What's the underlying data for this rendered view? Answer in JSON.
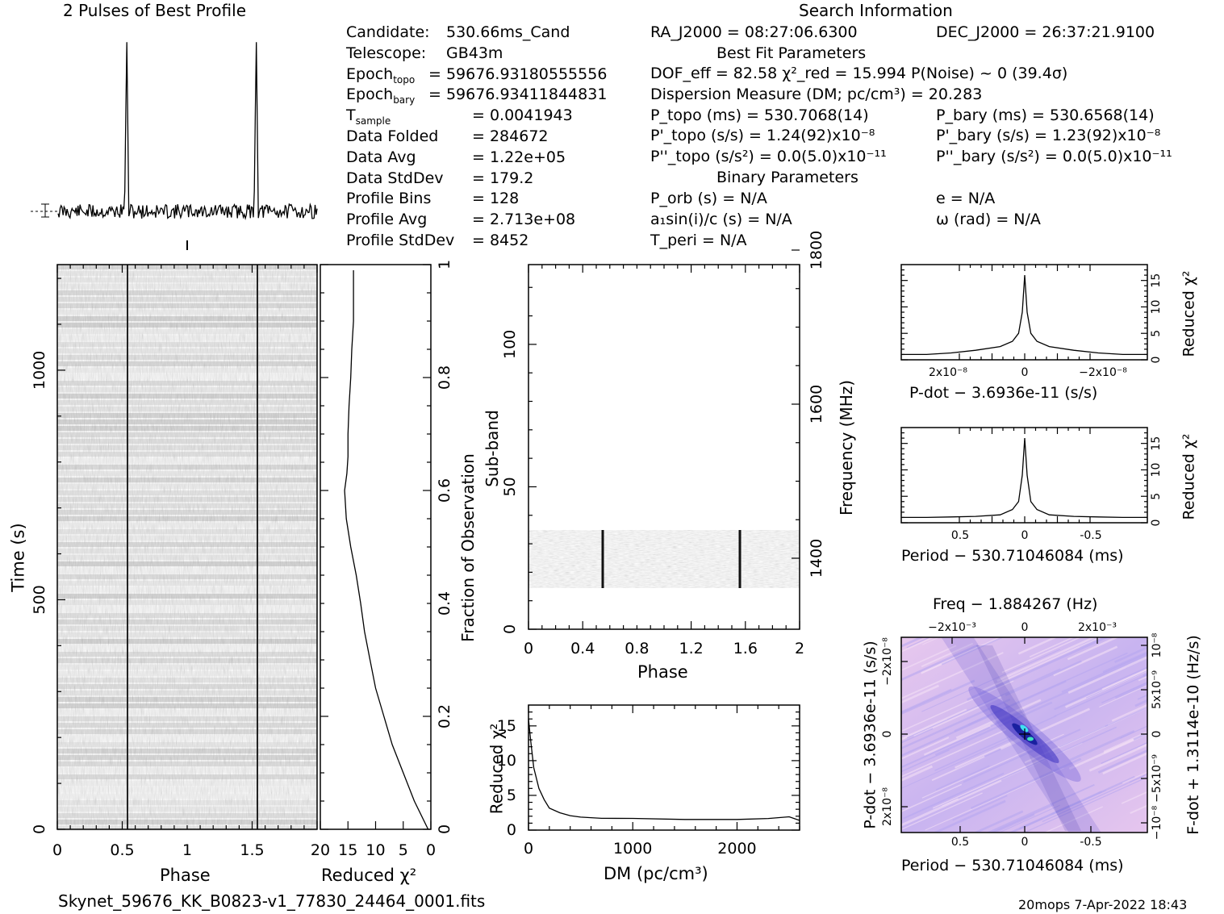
{
  "header": {
    "profile_title": "2 Pulses of Best Profile",
    "search_title": "Search Information",
    "best_fit_title": "Best Fit Parameters",
    "binary_title": "Binary Parameters"
  },
  "candidate_info": [
    {
      "k": "Candidate:",
      "v": "530.66ms_Cand"
    },
    {
      "k": "Telescope:",
      "v": "GB43m"
    },
    {
      "k": "Epoch",
      "sub": "topo",
      "v": "= 59676.93180555556"
    },
    {
      "k": "Epoch",
      "sub": "bary",
      "v": "= 59676.93411844831"
    },
    {
      "k": "T",
      "sub": "sample",
      "v": "=   0.0041943"
    },
    {
      "k": "Data Folded",
      "v": "=   284672"
    },
    {
      "k": "Data Avg",
      "v": "=   1.22e+05"
    },
    {
      "k": "Data StdDev",
      "v": "=   179.2"
    },
    {
      "k": "Profile Bins",
      "v": "=   128"
    },
    {
      "k": "Profile Avg",
      "v": "=   2.713e+08"
    },
    {
      "k": "Profile StdDev",
      "v": "=   8452"
    }
  ],
  "search": {
    "ra": "RA_J2000 = 08:27:06.6300",
    "dec": "DEC_J2000 = 26:37:21.9100",
    "dof_line": "DOF_eff = 82.58  χ²_red = 15.994  P(Noise) ~ 0   (39.4σ)",
    "dm_line": "Dispersion Measure (DM; pc/cm³) = 20.283",
    "ptopo": "P_topo (ms) =  530.7068(14)",
    "pbary": "P_bary (ms) =  530.6568(14)",
    "pdtopo": "P'_topo (s/s) =  1.24(92)x10⁻⁸",
    "pdbary": "P'_bary (s/s) =  1.23(92)x10⁻⁸",
    "pddtopo": "P''_topo (s/s²) = 0.0(5.0)x10⁻¹¹",
    "pddbary": "P''_bary (s/s²) = 0.0(5.0)x10⁻¹¹",
    "porb": "P_orb (s) = N/A",
    "a1": "a₁sin(i)/c (s) = N/A",
    "tperi": "T_peri = N/A",
    "e": "e = N/A",
    "omega": "ω (rad) = N/A"
  },
  "labels": {
    "time_axis": "Time (s)",
    "phase": "Phase",
    "reduced_chi2": "Reduced χ²",
    "fraction": "Fraction of Observation",
    "subband": "Sub-band",
    "frequency": "Frequency (MHz)",
    "dm_axis": "DM (pc/cm³)",
    "pdot_axis": "P-dot − 3.6936e-11 (s/s)",
    "period_axis": "Period − 530.71046084 (ms)",
    "freq_axis": "Freq − 1.884267 (Hz)",
    "fdot_axis": "F-dot + 1.3114e-10 (Hz/s)"
  },
  "footer": {
    "filename": "Skynet_59676_KK_B0823-v1_77830_24464_0001.fits",
    "stamp": "20mops  7-Apr-2022 18:43"
  },
  "chart_data": [
    {
      "type": "line",
      "title": "2 Pulses of Best Profile",
      "x_range": [
        0,
        2
      ],
      "peaks_phase": [
        0.53,
        1.53
      ]
    },
    {
      "type": "heatmap",
      "xlabel": "Phase",
      "ylabel": "Time (s)",
      "xlim": [
        0,
        2
      ],
      "ylim": [
        0,
        1230
      ],
      "x_ticks": [
        0,
        0.5,
        1,
        1.5
      ],
      "y_ticks": [
        0,
        500,
        1000
      ],
      "pulse_phase": [
        0.53,
        1.53
      ]
    },
    {
      "type": "line",
      "xlabel": "Reduced χ²",
      "ylabel": "Fraction of Observation",
      "xlim": [
        20,
        0
      ],
      "ylim": [
        0,
        1
      ],
      "x_ticks": [
        20,
        15,
        10,
        5,
        0
      ],
      "y_ticks": [
        0,
        0.2,
        0.4,
        0.6,
        0.8,
        1
      ],
      "x": [
        0.5,
        3,
        5,
        7,
        8.5,
        10,
        11,
        12,
        12.7,
        13.5,
        14.5,
        15.3,
        15.6,
        15.2,
        15,
        15,
        14.8,
        14.5,
        14.3,
        14,
        14
      ],
      "y": [
        0,
        0.05,
        0.1,
        0.15,
        0.2,
        0.25,
        0.3,
        0.35,
        0.4,
        0.45,
        0.5,
        0.55,
        0.6,
        0.63,
        0.66,
        0.7,
        0.75,
        0.8,
        0.85,
        0.9,
        0.99
      ]
    },
    {
      "type": "heatmap",
      "xlabel": "Phase",
      "ylabel": "Sub-band",
      "xlim": [
        0,
        2
      ],
      "ylim": [
        0,
        128
      ],
      "x_ticks": [
        0,
        0.4,
        0.8,
        1.2,
        1.6,
        2
      ],
      "y_ticks": [
        0,
        50,
        100
      ],
      "freq_ticks": [
        1400,
        1600,
        1800
      ],
      "data_band": [
        15,
        35
      ]
    },
    {
      "type": "line",
      "xlabel": "DM (pc/cm³)",
      "ylabel": "Reduced χ²",
      "xlim": [
        0,
        2600
      ],
      "ylim": [
        0,
        18
      ],
      "x_ticks": [
        0,
        1000,
        2000
      ],
      "y_ticks": [
        0,
        5,
        10,
        15
      ],
      "x": [
        0,
        20,
        50,
        100,
        150,
        200,
        300,
        400,
        500,
        700,
        1000,
        1500,
        2000,
        2300,
        2500,
        2600
      ],
      "y": [
        16,
        13,
        9,
        6,
        4.3,
        3.2,
        2.4,
        2.1,
        1.9,
        1.7,
        1.6,
        1.55,
        1.5,
        1.6,
        2,
        1.5
      ]
    },
    {
      "type": "line",
      "xlabel": "P-dot − 3.6936e-11 (s/s)",
      "ylabel": "Reduced χ²",
      "ylim": [
        0,
        18
      ],
      "x_tick_labels": [
        "2x10⁻⁸",
        "0",
        "−2x10⁻⁸"
      ],
      "y_ticks": [
        0,
        5,
        10,
        15
      ],
      "x": [
        -1,
        -0.8,
        -0.6,
        -0.4,
        -0.2,
        -0.1,
        -0.05,
        -0.02,
        0,
        0.02,
        0.05,
        0.1,
        0.2,
        0.4,
        0.6,
        0.8,
        1
      ],
      "y": [
        1,
        1,
        1.3,
        1.8,
        2.5,
        3.5,
        5,
        9,
        16,
        9,
        5,
        3.5,
        2.5,
        1.8,
        1.3,
        1,
        1
      ]
    },
    {
      "type": "line",
      "xlabel": "Period − 530.71046084 (ms)",
      "ylabel": "Reduced χ²",
      "ylim": [
        0,
        18
      ],
      "x_ticks": [
        0.5,
        0,
        -0.5
      ],
      "y_ticks": [
        0,
        5,
        10,
        15
      ],
      "x": [
        1,
        0.8,
        0.6,
        0.4,
        0.2,
        0.1,
        0.05,
        0.02,
        0,
        -0.02,
        -0.05,
        -0.1,
        -0.2,
        -0.4,
        -0.6,
        -0.8,
        -1
      ],
      "y": [
        1,
        1,
        1.1,
        1.2,
        1.5,
        2.5,
        4,
        9,
        16,
        9,
        4,
        2.5,
        1.5,
        1.2,
        1.1,
        1,
        1
      ]
    },
    {
      "type": "heatmap",
      "xlabel": "Period − 530.71046084 (ms)",
      "ylabel": "P-dot − 3.6936e-11 (s/s)",
      "top_label": "Freq − 1.884267 (Hz)",
      "right_label": "F-dot + 1.3114e-10 (Hz/s)",
      "x_ticks": [
        0.5,
        0,
        -0.5
      ],
      "top_ticks": [
        "−2x10⁻³",
        "0",
        "2x10⁻³"
      ],
      "left_ticks": [
        "−2x10⁻⁸",
        "0",
        "2x10⁻⁸"
      ],
      "right_ticks": [
        "10⁻⁸",
        "5x10⁻⁹",
        "0",
        "−5x10⁻⁹",
        "−10⁻⁸"
      ],
      "peak": [
        0,
        0
      ]
    }
  ]
}
